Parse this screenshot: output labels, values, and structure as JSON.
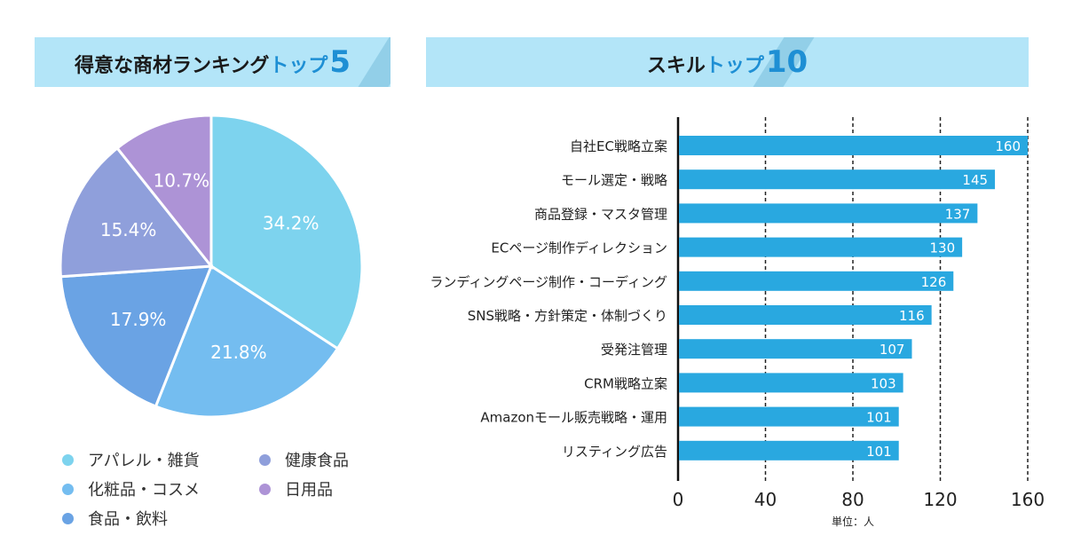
{
  "left_panel": {
    "title_main": "得意な商材ランキング",
    "title_accent": "トップ",
    "title_number": "5"
  },
  "right_panel": {
    "title_main": "スキル",
    "title_accent": "トップ",
    "title_number": "10"
  },
  "colors": {
    "header_bg": "#b3e5f8",
    "accent": "#1e8fd4",
    "bar": "#29a8e0"
  },
  "chart_data": [
    {
      "type": "pie",
      "title": "得意な商材ランキングトップ5",
      "slices": [
        {
          "label": "アパレル・雑貨",
          "value": 34.2,
          "display": "34.2%",
          "color": "#7dd3ee"
        },
        {
          "label": "化粧品・コスメ",
          "value": 21.8,
          "display": "21.8%",
          "color": "#74bdf0"
        },
        {
          "label": "食品・飲料",
          "value": 17.9,
          "display": "17.9%",
          "color": "#6aa3e4"
        },
        {
          "label": "健康食品",
          "value": 15.4,
          "display": "15.4%",
          "color": "#8f9fdb"
        },
        {
          "label": "日用品",
          "value": 10.7,
          "display": "10.7%",
          "color": "#ad93d6"
        }
      ],
      "legend_order": [
        "アパレル・雑貨",
        "健康食品",
        "化粧品・コスメ",
        "日用品",
        "食品・飲料"
      ],
      "legend_placement": "bottom"
    },
    {
      "type": "bar",
      "orientation": "horizontal",
      "title": "スキルトップ10",
      "categories": [
        "自社EC戦略立案",
        "モール選定・戦略",
        "商品登録・マスタ管理",
        "ECページ制作ディレクション",
        "ランディングページ制作・コーディング",
        "SNS戦略・方針策定・体制づくり",
        "受発注管理",
        "CRM戦略立案",
        "Amazonモール販売戦略・運用",
        "リスティング広告"
      ],
      "values": [
        160,
        145,
        137,
        130,
        126,
        116,
        107,
        103,
        101,
        101
      ],
      "xlim": [
        0,
        160
      ],
      "xticks": [
        0,
        40,
        80,
        120,
        160
      ],
      "unit_label": "単位：人",
      "grid": "vertical dashed"
    }
  ]
}
